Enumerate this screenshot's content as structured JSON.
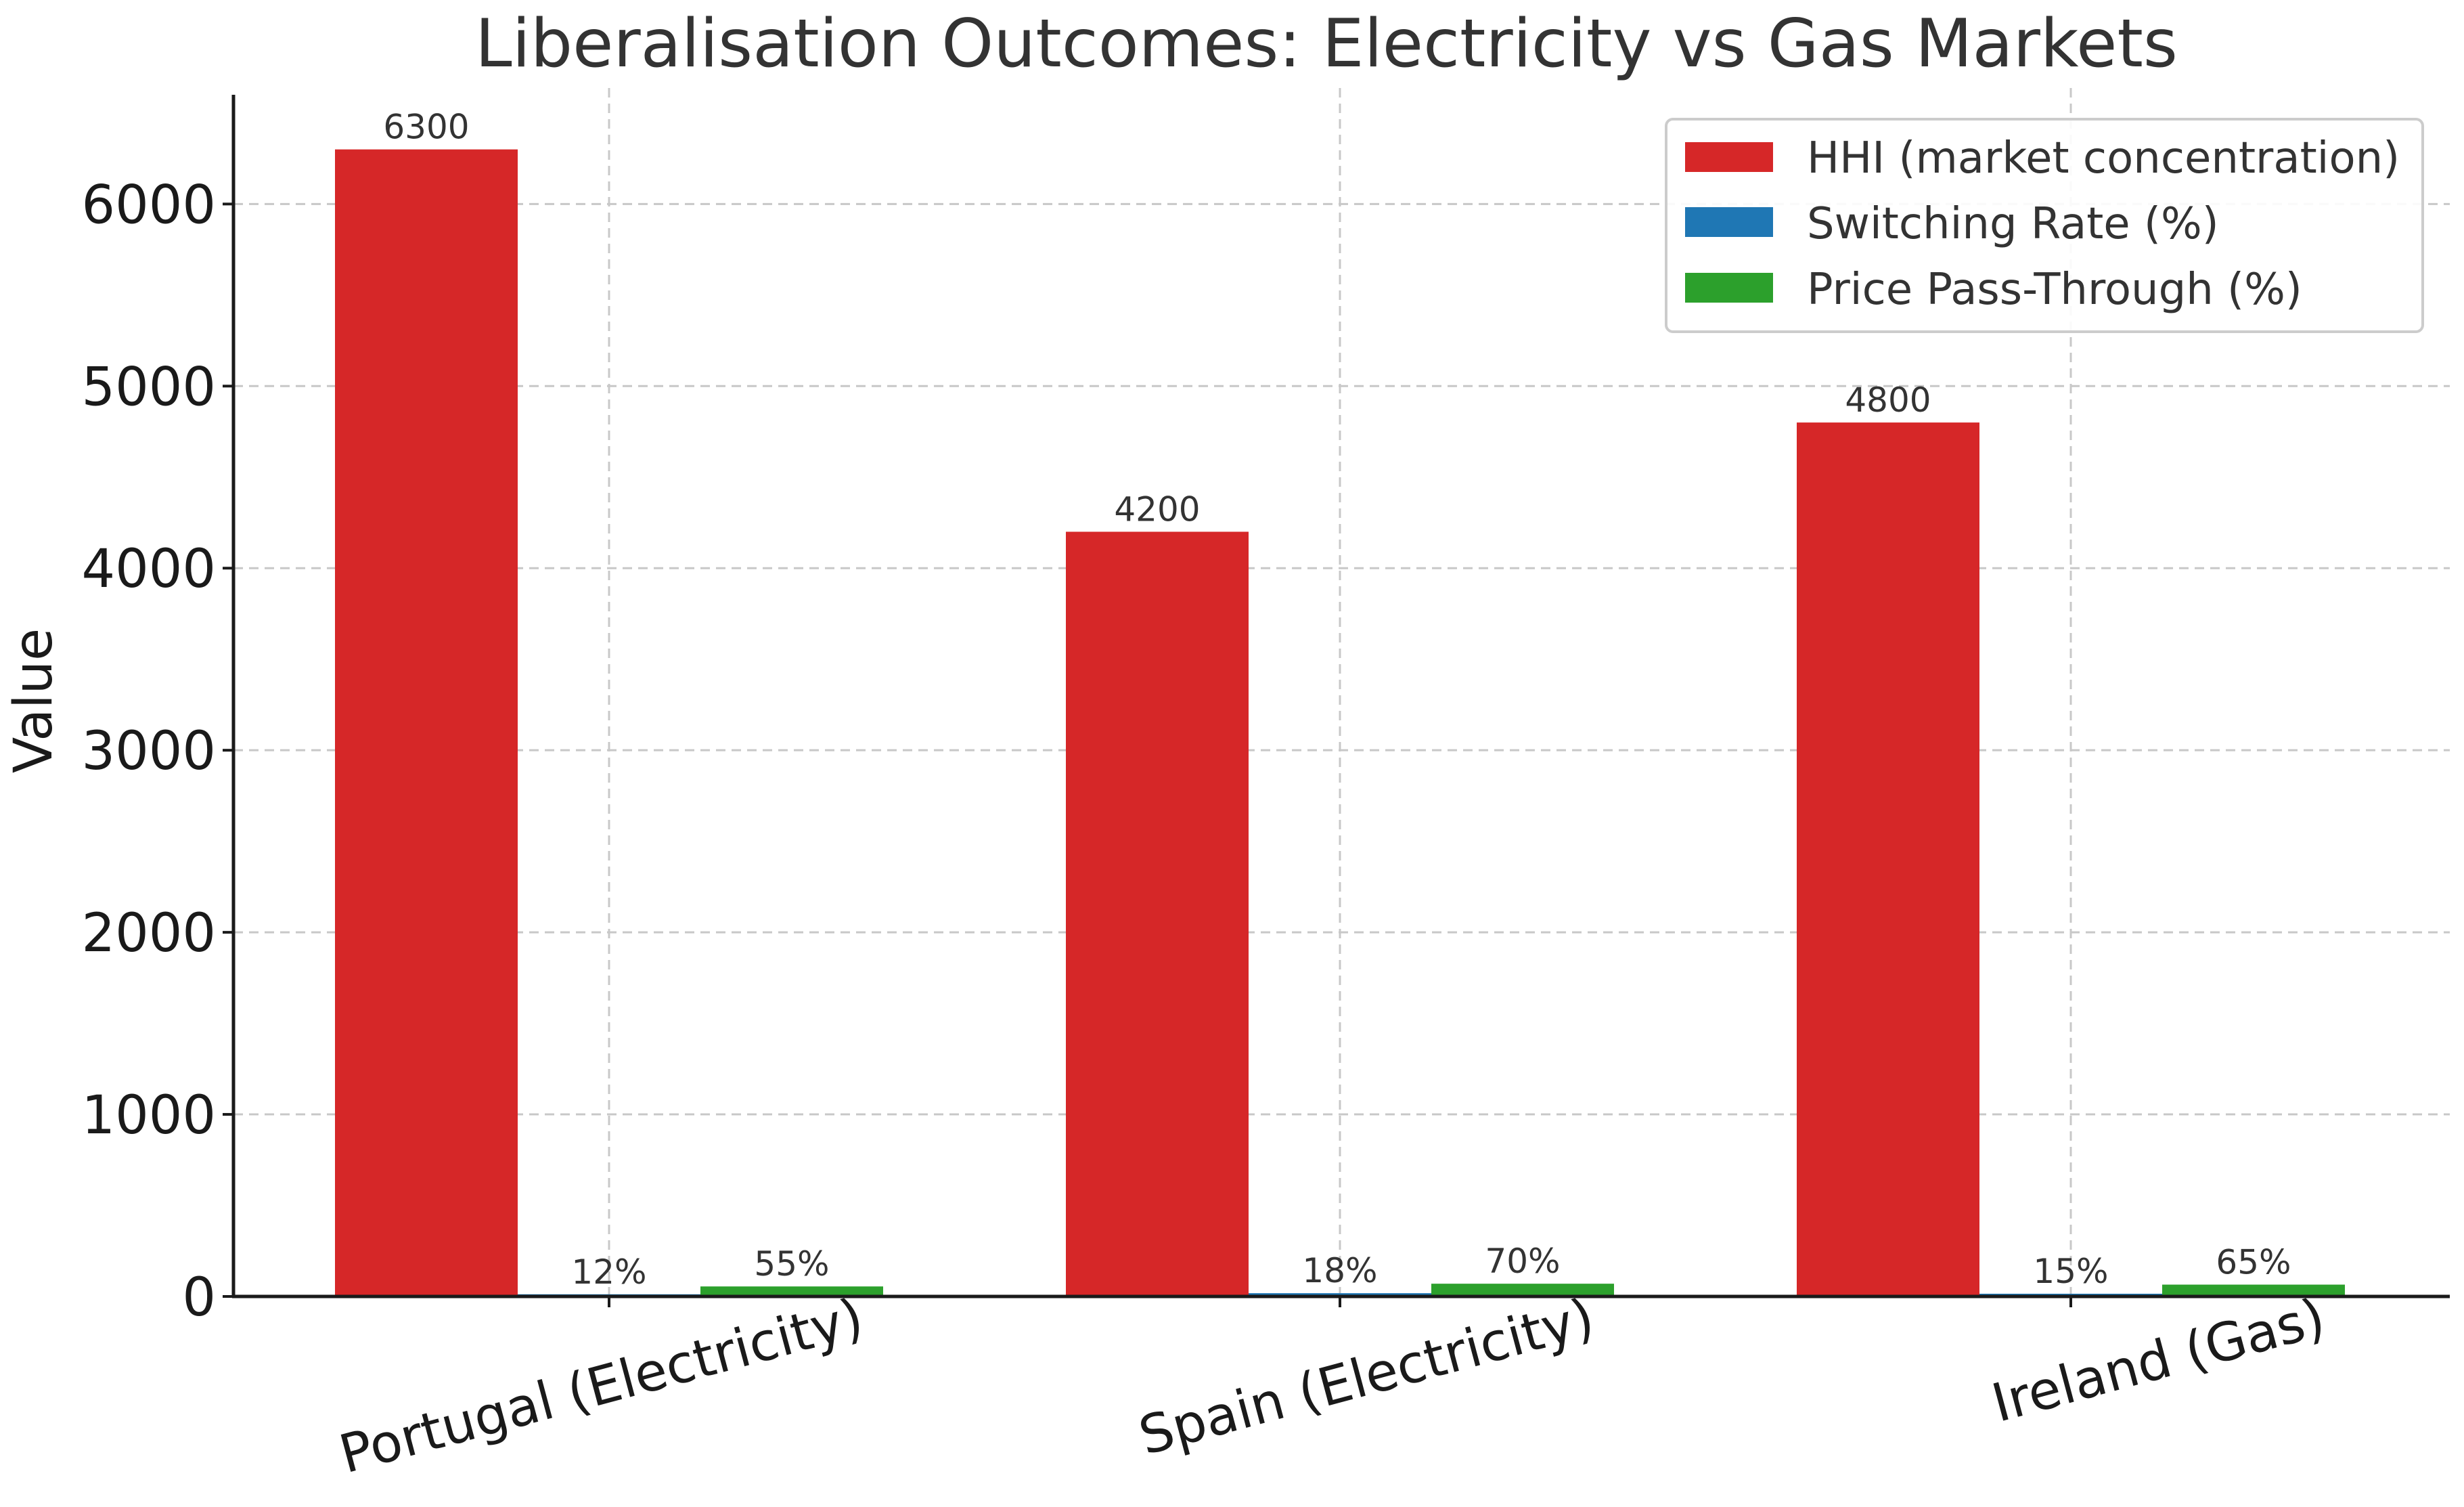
{
  "chart_data": {
    "type": "bar",
    "title": "Liberalisation Outcomes: Electricity vs Gas Markets",
    "xlabel": "",
    "ylabel": "Value",
    "categories": [
      "Portugal (Electricity)",
      "Spain (Electricity)",
      "Ireland (Gas)"
    ],
    "series": [
      {
        "name": "HHI (market concentration)",
        "color": "#d62728",
        "values": [
          6300,
          4200,
          4800
        ],
        "labels": [
          "6300",
          "4200",
          "4800"
        ]
      },
      {
        "name": "Switching Rate (%)",
        "color": "#1f77b4",
        "values": [
          12,
          18,
          15
        ],
        "labels": [
          "12%",
          "18%",
          "15%"
        ]
      },
      {
        "name": "Price Pass-Through (%)",
        "color": "#2ca02c",
        "values": [
          55,
          70,
          65
        ],
        "labels": [
          "55%",
          "70%",
          "65%"
        ]
      }
    ],
    "ylim": [
      0,
      6600
    ],
    "yticks": [
      0,
      1000,
      2000,
      3000,
      4000,
      5000,
      6000
    ],
    "grid": true,
    "legend_position": "top-right"
  }
}
